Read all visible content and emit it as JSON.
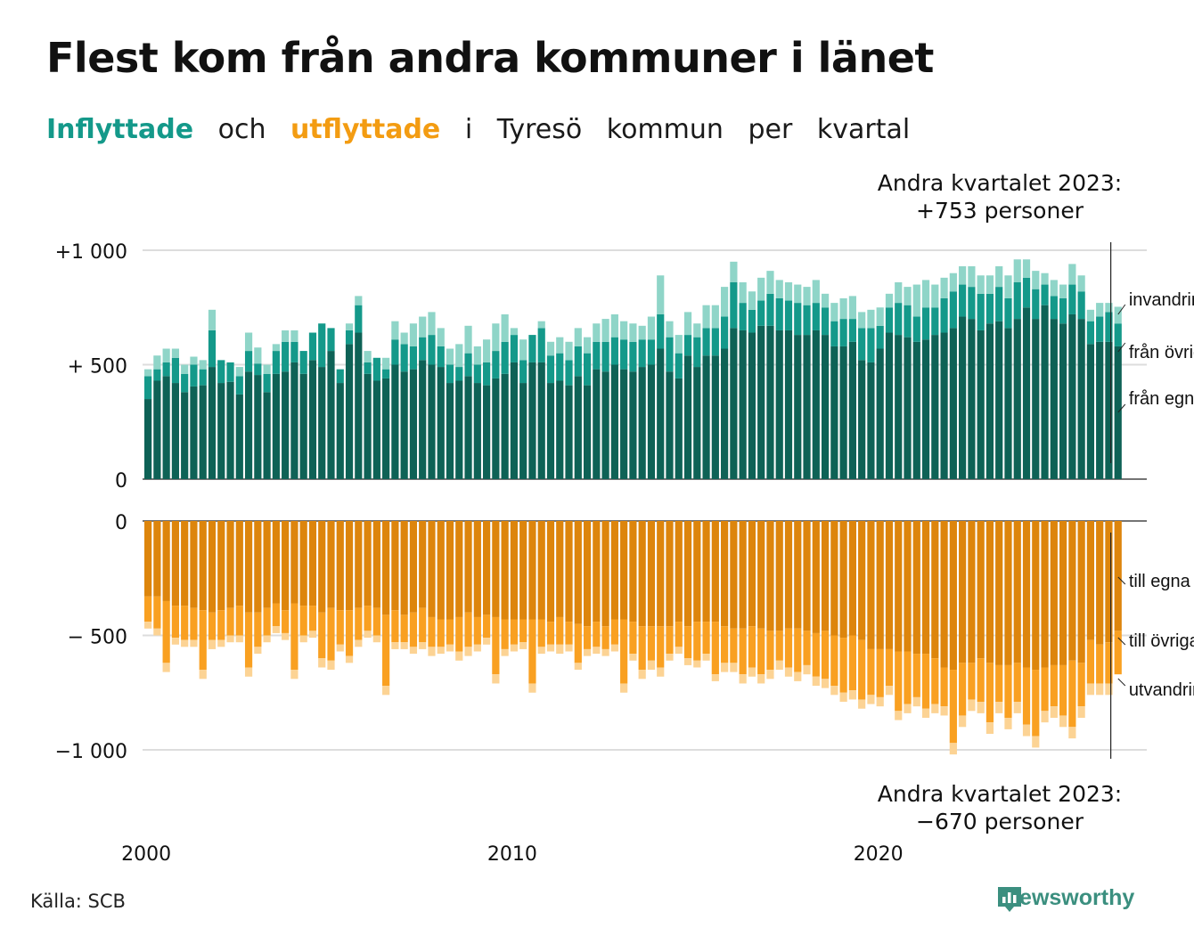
{
  "title": "Flest kom från andra kommuner i länet",
  "subtitle": {
    "part1": "Inflyttade",
    "part2": "och",
    "part3": "utflyttade",
    "part4": "i",
    "part5": "Tyresö",
    "part6": "kommun",
    "part7": "per",
    "part8": "kvartal"
  },
  "colors": {
    "in_own": "#0e6256",
    "in_other": "#14998a",
    "in_imm": "#8fd5c8",
    "out_own": "#dd850c",
    "out_other": "#f9a021",
    "out_emi": "#fcd394",
    "text": "#111111",
    "grid": "#dddddd"
  },
  "annotations": {
    "top_line1": "Andra kvartalet 2023:",
    "top_line2": "+753 personer",
    "bottom_line1": "Andra kvartalet 2023:",
    "bottom_line2": "−670 personer"
  },
  "source": "Källa: SCB",
  "brand": "Newsworthy",
  "chart_data": {
    "type": "bar",
    "stacked": true,
    "period": "quarter",
    "start": "2000 Q1",
    "end": "2023 Q2",
    "x_ticks": [
      "2000",
      "2010",
      "2020"
    ],
    "top_panel": {
      "y_ticks": [
        "+1 000",
        "+ 500",
        "0"
      ],
      "ylim": [
        0,
        1000
      ],
      "series": [
        {
          "name": "från egna länet",
          "values": [
            350,
            430,
            450,
            420,
            380,
            405,
            410,
            490,
            420,
            425,
            370,
            470,
            455,
            380,
            460,
            470,
            510,
            460,
            520,
            490,
            560,
            420,
            590,
            640,
            460,
            430,
            440,
            500,
            470,
            480,
            520,
            500,
            490,
            420,
            430,
            450,
            420,
            410,
            440,
            460,
            510,
            420,
            510,
            510,
            420,
            430,
            410,
            450,
            410,
            480,
            470,
            500,
            480,
            470,
            490,
            500,
            570,
            470,
            440,
            540,
            490,
            540,
            540,
            570,
            660,
            650,
            640,
            670,
            670,
            650,
            650,
            630,
            630,
            650,
            630,
            580,
            580,
            600,
            520,
            510,
            570,
            640,
            630,
            620,
            600,
            610,
            630,
            640,
            660,
            710,
            700,
            650,
            680,
            690,
            660,
            700,
            750,
            700,
            760,
            700,
            680,
            720,
            700,
            590,
            600,
            600,
            580
          ]
        },
        {
          "name": "från övriga län",
          "values": [
            100,
            50,
            60,
            110,
            80,
            95,
            70,
            160,
            100,
            85,
            80,
            90,
            50,
            80,
            100,
            130,
            90,
            100,
            120,
            190,
            100,
            60,
            60,
            120,
            50,
            100,
            40,
            110,
            120,
            100,
            100,
            130,
            90,
            80,
            60,
            100,
            80,
            100,
            120,
            140,
            120,
            100,
            120,
            150,
            120,
            120,
            110,
            130,
            140,
            120,
            130,
            120,
            130,
            130,
            120,
            110,
            150,
            150,
            110,
            90,
            130,
            120,
            120,
            140,
            200,
            120,
            100,
            110,
            140,
            140,
            130,
            140,
            130,
            120,
            120,
            110,
            120,
            100,
            140,
            150,
            100,
            110,
            140,
            140,
            110,
            140,
            120,
            150,
            160,
            140,
            140,
            160,
            130,
            150,
            130,
            160,
            130,
            130,
            90,
            100,
            110,
            130,
            120,
            100,
            110,
            130,
            100
          ]
        },
        {
          "name": "invandring",
          "values": [
            30,
            60,
            60,
            40,
            40,
            35,
            40,
            90,
            0,
            0,
            40,
            80,
            70,
            40,
            30,
            50,
            50,
            0,
            0,
            0,
            0,
            0,
            30,
            40,
            50,
            0,
            50,
            80,
            50,
            100,
            90,
            100,
            80,
            70,
            100,
            120,
            80,
            100,
            120,
            120,
            30,
            90,
            0,
            30,
            60,
            70,
            80,
            80,
            70,
            80,
            100,
            100,
            80,
            80,
            60,
            100,
            170,
            70,
            80,
            100,
            60,
            100,
            100,
            130,
            90,
            90,
            80,
            100,
            100,
            80,
            80,
            80,
            80,
            100,
            60,
            80,
            90,
            100,
            70,
            80,
            80,
            60,
            90,
            80,
            140,
            120,
            100,
            90,
            80,
            80,
            90,
            80,
            80,
            90,
            100,
            100,
            80,
            80,
            50,
            70,
            60,
            90,
            70,
            50,
            60,
            40,
            73
          ]
        }
      ]
    },
    "bottom_panel": {
      "y_ticks": [
        "0",
        "− 500",
        "−1 000"
      ],
      "ylim": [
        -1000,
        0
      ],
      "series": [
        {
          "name": "till egna länet",
          "values": [
            -330,
            -330,
            -350,
            -370,
            -370,
            -380,
            -390,
            -400,
            -390,
            -380,
            -370,
            -400,
            -400,
            -380,
            -360,
            -390,
            -360,
            -370,
            -370,
            -400,
            -380,
            -390,
            -390,
            -380,
            -370,
            -380,
            -410,
            -390,
            -410,
            -400,
            -380,
            -420,
            -430,
            -430,
            -420,
            -400,
            -420,
            -410,
            -420,
            -430,
            -430,
            -430,
            -430,
            -430,
            -440,
            -420,
            -440,
            -450,
            -460,
            -440,
            -460,
            -430,
            -430,
            -440,
            -460,
            -460,
            -460,
            -460,
            -440,
            -460,
            -440,
            -440,
            -440,
            -460,
            -470,
            -470,
            -460,
            -470,
            -480,
            -480,
            -470,
            -470,
            -480,
            -490,
            -480,
            -500,
            -510,
            -500,
            -520,
            -560,
            -560,
            -560,
            -570,
            -570,
            -580,
            -580,
            -600,
            -640,
            -650,
            -620,
            -620,
            -600,
            -620,
            -630,
            -630,
            -620,
            -640,
            -650,
            -640,
            -630,
            -630,
            -610,
            -620,
            -520,
            -540,
            -530,
            -480
          ]
        },
        {
          "name": "till övriga län",
          "values": [
            -110,
            -140,
            -270,
            -140,
            -150,
            -140,
            -260,
            -120,
            -130,
            -120,
            -130,
            -240,
            -150,
            -120,
            -100,
            -100,
            -290,
            -130,
            -110,
            -200,
            -230,
            -150,
            -200,
            -140,
            -110,
            -120,
            -310,
            -140,
            -120,
            -150,
            -150,
            -130,
            -120,
            -110,
            -150,
            -150,
            -120,
            -100,
            -250,
            -130,
            -110,
            -100,
            -280,
            -120,
            -100,
            -120,
            -100,
            -170,
            -100,
            -110,
            -100,
            -110,
            -280,
            -140,
            -190,
            -150,
            -180,
            -120,
            -110,
            -140,
            -170,
            -140,
            -230,
            -160,
            -150,
            -200,
            -180,
            -200,
            -170,
            -130,
            -170,
            -190,
            -150,
            -190,
            -210,
            -220,
            -240,
            -240,
            -260,
            -200,
            -210,
            -160,
            -260,
            -230,
            -190,
            -240,
            -200,
            -170,
            -320,
            -230,
            -160,
            -190,
            -260,
            -160,
            -230,
            -170,
            -250,
            -290,
            -190,
            -180,
            -220,
            -290,
            -190,
            -190,
            -170,
            -180,
            -190
          ]
        },
        {
          "name": "utvandring",
          "values": [
            -30,
            -30,
            -40,
            -30,
            -30,
            -30,
            -40,
            -40,
            -30,
            -30,
            -30,
            -40,
            -30,
            -30,
            -30,
            -30,
            -40,
            -30,
            -30,
            -40,
            -40,
            -30,
            -30,
            -30,
            -30,
            -30,
            -40,
            -30,
            -30,
            -30,
            -30,
            -40,
            -30,
            -30,
            -40,
            -40,
            -30,
            -30,
            -40,
            -30,
            -30,
            -30,
            -40,
            -30,
            -30,
            -40,
            -30,
            -30,
            -30,
            -30,
            -30,
            -30,
            -40,
            -30,
            -40,
            -40,
            -40,
            -30,
            -30,
            -30,
            -30,
            -30,
            -30,
            -40,
            -40,
            -40,
            -40,
            -40,
            -40,
            -40,
            -40,
            -40,
            -40,
            -40,
            -40,
            -40,
            -40,
            -40,
            -40,
            -40,
            -40,
            -40,
            -40,
            -40,
            -40,
            -40,
            -40,
            -40,
            -50,
            -50,
            -50,
            -50,
            -50,
            -50,
            -50,
            -50,
            -50,
            -50,
            -50,
            -50,
            -50,
            -50,
            -50,
            -50,
            -50,
            -50,
            0
          ]
        }
      ]
    }
  }
}
